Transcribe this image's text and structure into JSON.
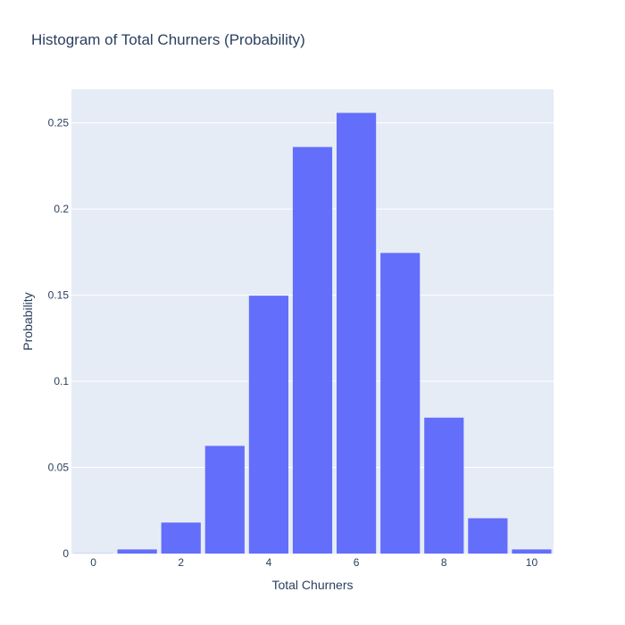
{
  "chart_data": {
    "type": "bar",
    "title": "Histogram of Total Churners (Probability)",
    "xlabel": "Total Churners",
    "ylabel": "Probability",
    "x": [
      0,
      1,
      2,
      3,
      4,
      5,
      6,
      7,
      8,
      9,
      10
    ],
    "values": [
      0.0001,
      0.0024,
      0.018,
      0.0625,
      0.1497,
      0.236,
      0.2558,
      0.1745,
      0.0789,
      0.0205,
      0.0024
    ],
    "xlim": [
      -0.5,
      10.5
    ],
    "ylim": [
      0,
      0.2695
    ],
    "x_ticks": [
      0,
      2,
      4,
      6,
      8,
      10
    ],
    "x_tick_labels": [
      "0",
      "2",
      "4",
      "6",
      "8",
      "10"
    ],
    "y_ticks": [
      0,
      0.05,
      0.1,
      0.15,
      0.2,
      0.25
    ],
    "y_tick_labels": [
      "0",
      "0.05",
      "0.1",
      "0.15",
      "0.2",
      "0.25"
    ],
    "bar_color": "#636efa",
    "plot_background": "#e5ecf6",
    "grid": true
  }
}
